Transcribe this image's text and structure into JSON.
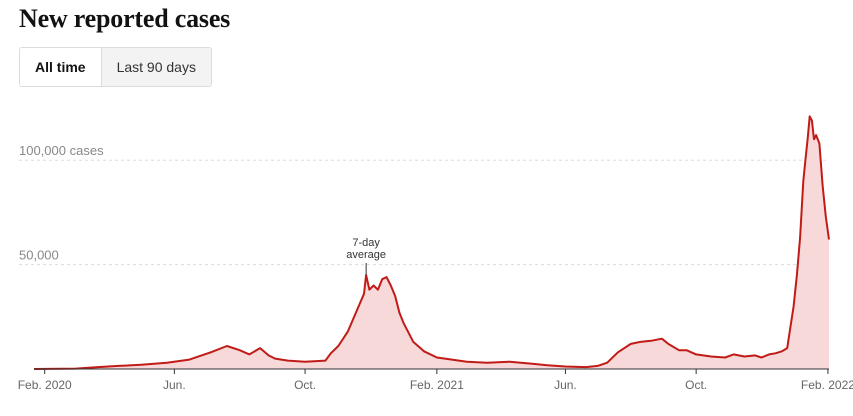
{
  "header": {
    "title": "New reported cases"
  },
  "range_toggle": {
    "all_time_label": "All time",
    "last_90_label": "Last 90 days",
    "selected": "All time"
  },
  "colors": {
    "line": "#c11b17",
    "fill": "#f7d9d9",
    "grid": "#dddddd",
    "axis": "#333333",
    "text": "#666666"
  },
  "chart_data": {
    "type": "area",
    "title": "New reported cases",
    "x_tick_labels": [
      "Feb. 2020",
      "Jun.",
      "Oct.",
      "Feb. 2021",
      "Jun.",
      "Oct.",
      "Feb. 2022"
    ],
    "x_tick_dates": [
      "2020-02-01",
      "2020-06-01",
      "2020-10-01",
      "2021-02-01",
      "2021-06-01",
      "2021-10-01",
      "2022-02-01"
    ],
    "y_tick_labels": [
      "50,000",
      "100,000 cases"
    ],
    "y_tick_values": [
      50000,
      100000
    ],
    "ylim": [
      0,
      125000
    ],
    "xlim": [
      "2020-01-22",
      "2022-02-02"
    ],
    "grid": "horizontal dashed",
    "annotation": {
      "text_line1": "7-day",
      "text_line2": "average",
      "x": "2020-11-27",
      "y": 45000
    },
    "series": [
      {
        "x": [
          "2020-01-22",
          "2020-03-01",
          "2020-03-20",
          "2020-04-10",
          "2020-05-01",
          "2020-05-25",
          "2020-06-15",
          "2020-07-05",
          "2020-07-20",
          "2020-08-01",
          "2020-08-10",
          "2020-08-20",
          "2020-08-28",
          "2020-09-03",
          "2020-09-15",
          "2020-10-01",
          "2020-10-20",
          "2020-10-25",
          "2020-11-01",
          "2020-11-10",
          "2020-11-20",
          "2020-11-25",
          "2020-11-27",
          "2020-11-30",
          "2020-12-04",
          "2020-12-08",
          "2020-12-12",
          "2020-12-16",
          "2020-12-20",
          "2020-12-24",
          "2020-12-28",
          "2021-01-01",
          "2021-01-10",
          "2021-01-20",
          "2021-02-01",
          "2021-02-15",
          "2021-03-01",
          "2021-03-20",
          "2021-04-10",
          "2021-05-01",
          "2021-05-15",
          "2021-06-01",
          "2021-06-20",
          "2021-07-01",
          "2021-07-10",
          "2021-07-20",
          "2021-08-01",
          "2021-08-10",
          "2021-08-20",
          "2021-08-30",
          "2021-09-05",
          "2021-09-15",
          "2021-09-22",
          "2021-10-01",
          "2021-10-15",
          "2021-10-28",
          "2021-11-05",
          "2021-11-15",
          "2021-11-25",
          "2021-12-01",
          "2021-12-08",
          "2021-12-14",
          "2021-12-20",
          "2021-12-25",
          "2021-12-28",
          "2021-12-31",
          "2022-01-03",
          "2022-01-06",
          "2022-01-09",
          "2022-01-11",
          "2022-01-13",
          "2022-01-15",
          "2022-01-17",
          "2022-01-19",
          "2022-01-21",
          "2022-01-24",
          "2022-01-27",
          "2022-01-30",
          "2022-02-02"
        ],
        "y": [
          0,
          200,
          800,
          1500,
          2000,
          3000,
          4500,
          8000,
          11000,
          9000,
          7000,
          10000,
          6500,
          5000,
          4000,
          3500,
          4000,
          7500,
          11000,
          18000,
          30000,
          36000,
          45000,
          38000,
          40000,
          38000,
          43000,
          44000,
          40000,
          35000,
          27000,
          22000,
          13000,
          8500,
          5500,
          4500,
          3500,
          3000,
          3500,
          2500,
          1800,
          1200,
          900,
          1500,
          3000,
          8000,
          12000,
          13000,
          13500,
          14500,
          12000,
          9000,
          9000,
          7000,
          6000,
          5500,
          7000,
          6000,
          6500,
          5500,
          7000,
          7500,
          8500,
          10000,
          20000,
          30000,
          45000,
          63000,
          90000,
          100000,
          110000,
          121000,
          119000,
          110000,
          112000,
          108000,
          88000,
          73000,
          62000
        ]
      }
    ]
  }
}
